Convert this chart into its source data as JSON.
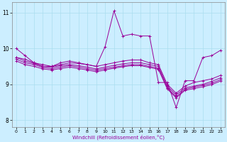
{
  "title": "",
  "xlabel": "Windchill (Refroidissement éolien,°C)",
  "bg_color": "#cceeff",
  "line_color": "#990099",
  "grid_color": "#aaddee",
  "xlim": [
    -0.5,
    23.5
  ],
  "ylim": [
    7.8,
    11.3
  ],
  "yticks": [
    8,
    9,
    10,
    11
  ],
  "xticks": [
    0,
    1,
    2,
    3,
    4,
    5,
    6,
    7,
    8,
    9,
    10,
    11,
    12,
    13,
    14,
    15,
    16,
    17,
    18,
    19,
    20,
    21,
    22,
    23
  ],
  "series": [
    [
      10.0,
      9.8,
      9.6,
      9.55,
      9.5,
      9.6,
      9.65,
      9.6,
      9.55,
      9.5,
      10.05,
      11.05,
      10.35,
      10.4,
      10.35,
      10.35,
      9.05,
      9.05,
      8.35,
      9.1,
      9.1,
      9.75,
      9.8,
      9.95
    ],
    [
      9.75,
      9.7,
      9.6,
      9.5,
      9.5,
      9.55,
      9.6,
      9.58,
      9.55,
      9.5,
      9.55,
      9.6,
      9.65,
      9.68,
      9.68,
      9.6,
      9.55,
      9.0,
      8.75,
      8.95,
      9.05,
      9.1,
      9.15,
      9.25
    ],
    [
      9.75,
      9.65,
      9.58,
      9.5,
      9.48,
      9.52,
      9.55,
      9.52,
      9.48,
      9.43,
      9.48,
      9.53,
      9.57,
      9.6,
      9.6,
      9.55,
      9.5,
      8.95,
      8.7,
      8.9,
      8.95,
      9.0,
      9.08,
      9.18
    ],
    [
      9.7,
      9.6,
      9.55,
      9.47,
      9.44,
      9.48,
      9.52,
      9.48,
      9.44,
      9.39,
      9.44,
      9.48,
      9.52,
      9.55,
      9.55,
      9.5,
      9.45,
      8.9,
      8.65,
      8.86,
      8.92,
      8.97,
      9.03,
      9.13
    ],
    [
      9.65,
      9.55,
      9.5,
      9.43,
      9.4,
      9.44,
      9.48,
      9.44,
      9.4,
      9.35,
      9.4,
      9.45,
      9.49,
      9.52,
      9.52,
      9.47,
      9.42,
      8.87,
      8.62,
      8.83,
      8.88,
      8.93,
      8.99,
      9.09
    ]
  ]
}
